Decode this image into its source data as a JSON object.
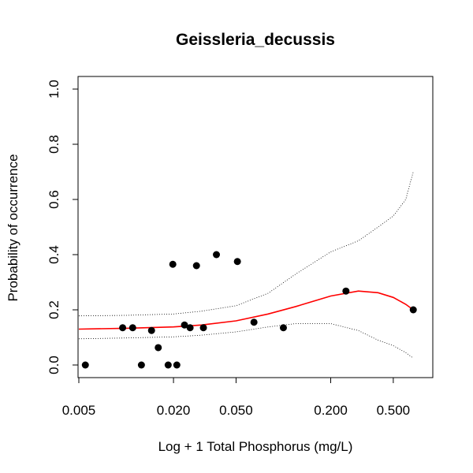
{
  "chart_data": {
    "type": "scatter",
    "title": "Geissleria_decussis",
    "xlabel": "Log + 1 Total Phosphorus (mg/L)",
    "ylabel": "Probability of occurrence",
    "x_scale": "log",
    "xlim": [
      0.005,
      0.75
    ],
    "ylim": [
      0.0,
      1.0
    ],
    "x_ticks": [
      0.005,
      0.02,
      0.05,
      0.2,
      0.5
    ],
    "x_tick_labels": [
      "0.005",
      "0.020",
      "0.050",
      "0.200",
      "0.500"
    ],
    "y_ticks": [
      0.0,
      0.2,
      0.4,
      0.6,
      0.8,
      1.0
    ],
    "y_tick_labels": [
      "0.0",
      "0.2",
      "0.4",
      "0.6",
      "0.8",
      "1.0"
    ],
    "grid": false,
    "colors": {
      "fit": "#ff0000",
      "points": "#000000",
      "ci": "#000000"
    },
    "points": [
      {
        "x": 0.0055,
        "y": 0.0
      },
      {
        "x": 0.0095,
        "y": 0.135
      },
      {
        "x": 0.011,
        "y": 0.135
      },
      {
        "x": 0.0125,
        "y": 0.0
      },
      {
        "x": 0.0145,
        "y": 0.125
      },
      {
        "x": 0.016,
        "y": 0.063
      },
      {
        "x": 0.0185,
        "y": 0.0
      },
      {
        "x": 0.0198,
        "y": 0.365
      },
      {
        "x": 0.021,
        "y": 0.0
      },
      {
        "x": 0.0235,
        "y": 0.145
      },
      {
        "x": 0.0255,
        "y": 0.135
      },
      {
        "x": 0.028,
        "y": 0.36
      },
      {
        "x": 0.031,
        "y": 0.135
      },
      {
        "x": 0.0375,
        "y": 0.4
      },
      {
        "x": 0.051,
        "y": 0.375
      },
      {
        "x": 0.065,
        "y": 0.155
      },
      {
        "x": 0.1,
        "y": 0.135
      },
      {
        "x": 0.25,
        "y": 0.268
      },
      {
        "x": 0.67,
        "y": 0.2
      }
    ],
    "series": [
      {
        "role": "fitted",
        "x": [
          0.005,
          0.01,
          0.02,
          0.03,
          0.05,
          0.08,
          0.12,
          0.2,
          0.3,
          0.4,
          0.5,
          0.6,
          0.67
        ],
        "y": [
          0.13,
          0.133,
          0.138,
          0.145,
          0.16,
          0.185,
          0.212,
          0.25,
          0.268,
          0.262,
          0.245,
          0.22,
          0.2
        ]
      },
      {
        "role": "upper_ci",
        "x": [
          0.005,
          0.01,
          0.02,
          0.03,
          0.05,
          0.08,
          0.12,
          0.2,
          0.3,
          0.4,
          0.5,
          0.6,
          0.67
        ],
        "y": [
          0.178,
          0.18,
          0.185,
          0.195,
          0.215,
          0.26,
          0.33,
          0.41,
          0.45,
          0.5,
          0.54,
          0.6,
          0.7
        ]
      },
      {
        "role": "lower_ci",
        "x": [
          0.005,
          0.01,
          0.02,
          0.03,
          0.05,
          0.08,
          0.12,
          0.2,
          0.3,
          0.4,
          0.5,
          0.6,
          0.67
        ],
        "y": [
          0.095,
          0.098,
          0.102,
          0.108,
          0.12,
          0.138,
          0.15,
          0.15,
          0.125,
          0.09,
          0.07,
          0.045,
          0.025
        ]
      }
    ]
  }
}
